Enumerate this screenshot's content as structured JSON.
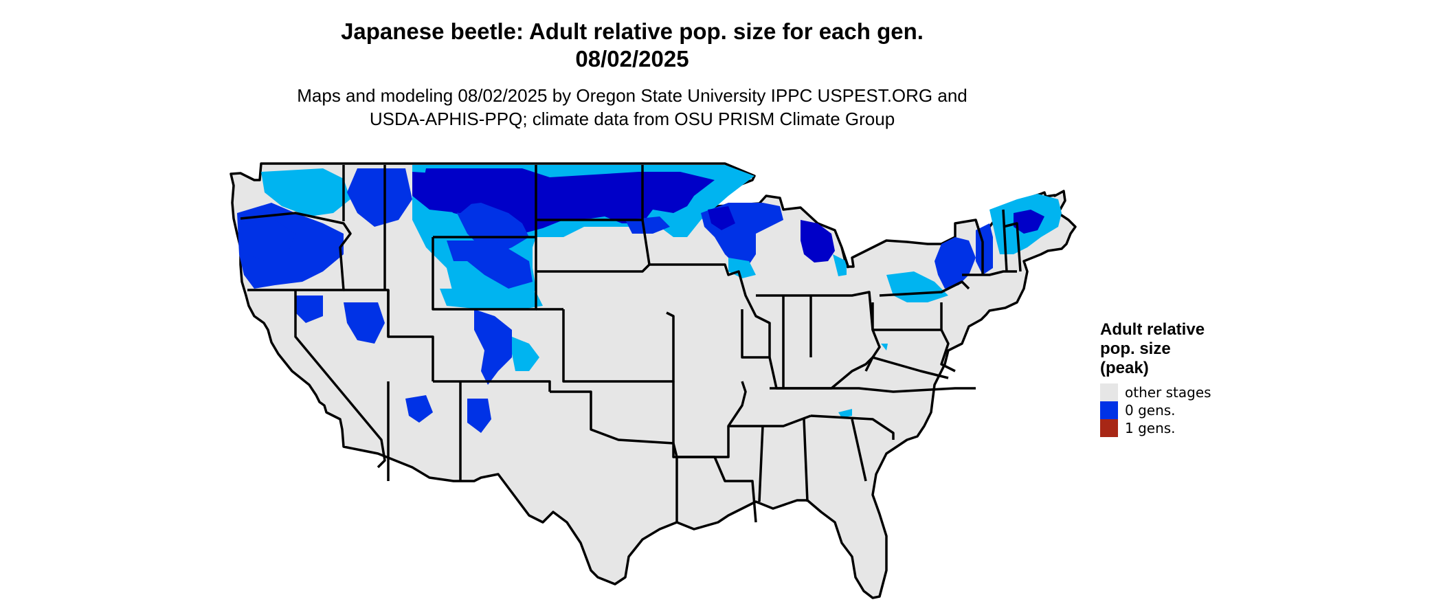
{
  "title": {
    "line1": "Japanese beetle: Adult relative pop. size for each gen.",
    "line2": "08/02/2025"
  },
  "subtitle": {
    "line1": "Maps and modeling 08/02/2025 by Oregon State University IPPC USPEST.ORG and",
    "line2": "USDA-APHIS-PPQ; climate data from OSU PRISM Climate Group"
  },
  "map": {
    "region": "Contiguous United States",
    "colors": {
      "background": "#e6e6e6",
      "border": "#000000",
      "light_blue": "#00b4f0",
      "blue": "#0032e6",
      "dark_blue": "#0000c8"
    }
  },
  "legend": {
    "title_lines": [
      "Adult relative",
      "pop. size",
      "(peak)"
    ],
    "items": [
      {
        "label": "other stages",
        "color": "#e6e6e6"
      },
      {
        "label": "0 gens.",
        "color": "#0032e6"
      },
      {
        "label": "1 gens.",
        "color": "#a82716"
      }
    ]
  }
}
